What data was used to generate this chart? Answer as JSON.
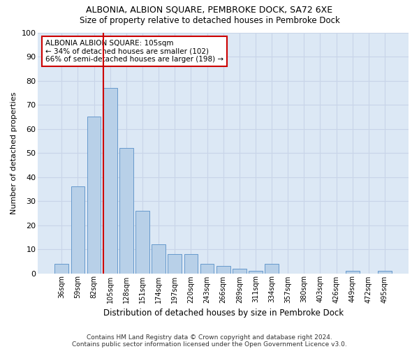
{
  "title": "ALBONIA, ALBION SQUARE, PEMBROKE DOCK, SA72 6XE",
  "subtitle": "Size of property relative to detached houses in Pembroke Dock",
  "xlabel": "Distribution of detached houses by size in Pembroke Dock",
  "ylabel": "Number of detached properties",
  "footnote1": "Contains HM Land Registry data © Crown copyright and database right 2024.",
  "footnote2": "Contains public sector information licensed under the Open Government Licence v3.0.",
  "categories": [
    "36sqm",
    "59sqm",
    "82sqm",
    "105sqm",
    "128sqm",
    "151sqm",
    "174sqm",
    "197sqm",
    "220sqm",
    "243sqm",
    "266sqm",
    "289sqm",
    "311sqm",
    "334sqm",
    "357sqm",
    "380sqm",
    "403sqm",
    "426sqm",
    "449sqm",
    "472sqm",
    "495sqm"
  ],
  "values": [
    4,
    36,
    65,
    77,
    52,
    26,
    12,
    8,
    8,
    4,
    3,
    2,
    1,
    4,
    0,
    0,
    0,
    0,
    1,
    0,
    1
  ],
  "bar_color": "#b8d0e8",
  "bar_edge_color": "#6699cc",
  "red_line_x": 2.575,
  "annotation_text": "ALBONIA ALBION SQUARE: 105sqm\n← 34% of detached houses are smaller (102)\n66% of semi-detached houses are larger (198) →",
  "annotation_box_color": "#ffffff",
  "annotation_box_edge": "#cc0000",
  "red_line_color": "#cc0000",
  "ylim": [
    0,
    100
  ],
  "yticks": [
    0,
    10,
    20,
    30,
    40,
    50,
    60,
    70,
    80,
    90,
    100
  ],
  "grid_color": "#c8d4e8",
  "background_color": "#dce8f5"
}
